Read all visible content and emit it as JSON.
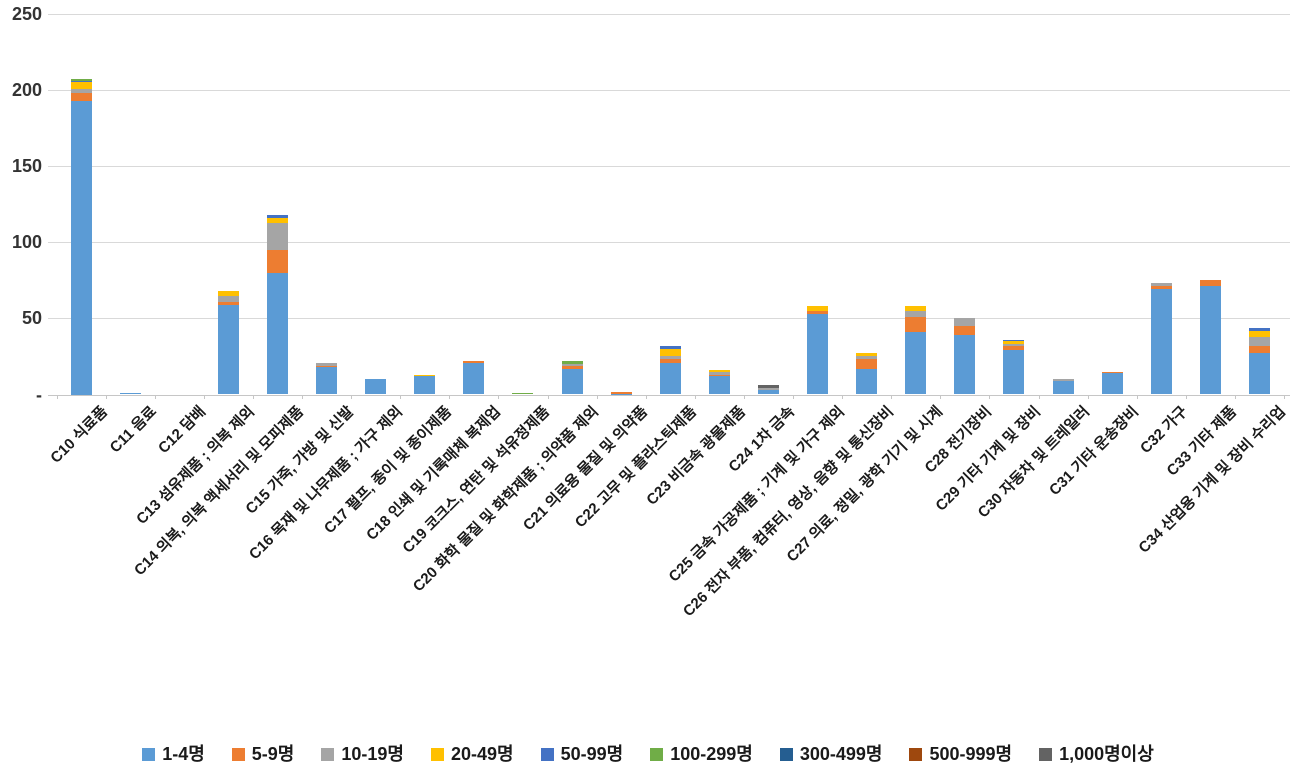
{
  "chart_data": {
    "type": "bar",
    "stacked": true,
    "title": "",
    "xlabel": "",
    "ylabel": "",
    "grid": true,
    "legend_position": "bottom",
    "y_axis": {
      "min": 0,
      "max": 250,
      "tick_step": 50,
      "ticks": [
        "-",
        "50",
        "100",
        "150",
        "200",
        "250"
      ]
    },
    "categories": [
      "C10 식료품",
      "C11 음료",
      "C12 담배",
      "C13 섬유제품 ; 의복 제외",
      "C14 의복, 의복 액세서리 및 모피제품",
      "C15 가죽, 가방 및 신발",
      "C16 목재 및 나무제품 ; 가구 제외",
      "C17 펄프, 종이 및 종이제품",
      "C18 인쇄 및 기록매체 복제업",
      "C19 코크스, 연탄 및 석유정제품",
      "C20 화학 물질 및 화학제품 ; 의약품 제외",
      "C21 의료용 물질 및 의약품",
      "C22 고무 및 플라스틱제품",
      "C23 비금속 광물제품",
      "C24 1차 금속",
      "C25 금속 가공제품 ; 기계 및 가구 제외",
      "C26 전자 부품, 컴퓨터, 영상, 음향 및 통신장비",
      "C27 의료, 정밀, 광학 기기 및 시계",
      "C28 전기장비",
      "C29 기타 기계 및 장비",
      "C30 자동차 및 트레일러",
      "C31 기타 운송장비",
      "C32 가구",
      "C33 기타 제품",
      "C34 산업용 기계 및 장비 수리업"
    ],
    "series": [
      {
        "name": "1-4명",
        "color": "#5B9BD5",
        "values": [
          193,
          1,
          0,
          59,
          80,
          18,
          10,
          12,
          21,
          0,
          17,
          0.5,
          21,
          12,
          3,
          53,
          17,
          41,
          39,
          29,
          9,
          14,
          69,
          71,
          27
        ]
      },
      {
        "name": "5-9명",
        "color": "#ED7D31",
        "values": [
          5,
          0,
          0,
          2,
          15,
          1,
          0,
          0,
          1,
          0,
          2,
          1,
          2,
          1,
          0,
          2,
          6,
          10,
          6,
          3,
          0,
          1,
          2,
          4,
          5
        ]
      },
      {
        "name": "10-19명",
        "color": "#A5A5A5",
        "values": [
          3,
          0,
          0,
          4,
          18,
          2,
          0,
          0,
          0,
          0,
          1,
          0,
          2,
          2,
          1,
          0,
          2,
          4,
          5,
          1,
          1,
          0,
          2,
          0,
          6
        ]
      },
      {
        "name": "20-49명",
        "color": "#FFC000",
        "values": [
          4,
          0,
          0,
          3,
          3,
          0,
          0,
          1,
          0,
          0,
          0,
          0,
          5,
          1,
          0,
          3,
          2,
          3,
          0,
          2,
          0,
          0,
          0,
          0,
          4
        ]
      },
      {
        "name": "50-99명",
        "color": "#4472C4",
        "values": [
          1,
          0,
          0,
          0,
          2,
          0,
          0,
          0,
          0,
          0,
          0,
          0,
          2,
          0,
          0,
          0,
          0,
          0,
          0,
          1,
          0,
          0,
          0,
          0,
          2
        ]
      },
      {
        "name": "100-299명",
        "color": "#70AD47",
        "values": [
          1,
          0,
          0,
          0,
          0,
          0,
          0,
          0,
          0,
          1,
          2,
          0,
          0,
          0,
          0,
          0,
          0,
          0,
          0,
          0,
          0,
          0,
          0,
          0,
          0
        ]
      },
      {
        "name": "300-499명",
        "color": "#255E91",
        "values": [
          0,
          0,
          0,
          0,
          0,
          0,
          0,
          0,
          0,
          0,
          0,
          0,
          0,
          0,
          0,
          0,
          0,
          0,
          0,
          0,
          0,
          0,
          0,
          0,
          0
        ]
      },
      {
        "name": "500-999명",
        "color": "#9E480E",
        "values": [
          0,
          0,
          0,
          0,
          0,
          0,
          0,
          0,
          0,
          0,
          0,
          0,
          0,
          0,
          0,
          0,
          0,
          0,
          0,
          0,
          0,
          0,
          0,
          0,
          0
        ]
      },
      {
        "name": "1,000명이상",
        "color": "#636363",
        "values": [
          0,
          0,
          0,
          0,
          0,
          0,
          0,
          0,
          0,
          0,
          0,
          0,
          0,
          0,
          2,
          0,
          0,
          0,
          0,
          0,
          0,
          0,
          0,
          0,
          0
        ]
      }
    ]
  }
}
